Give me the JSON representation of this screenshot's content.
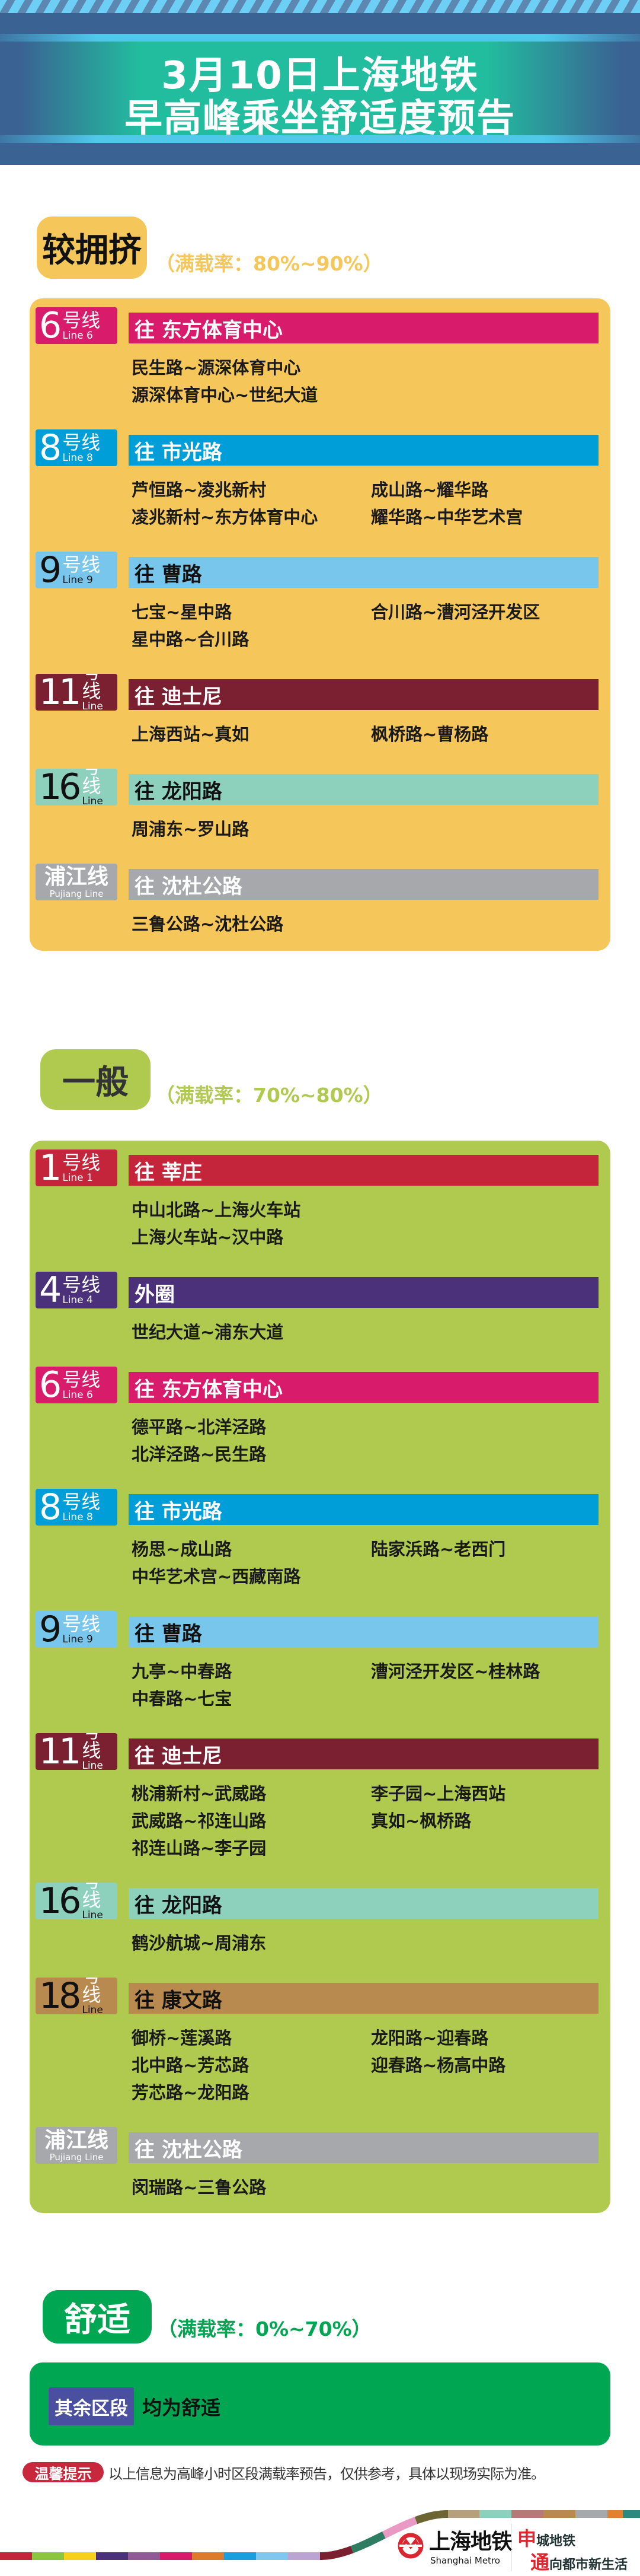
{
  "header": {
    "title_line1": "3月10日上海地铁",
    "title_line2": "早高峰乘坐舒适度预告"
  },
  "sections": [
    {
      "level": "较拥挤",
      "range": "（满载率：80%~90%）",
      "card_color": "#f5c75a",
      "badge_color": "#f5c75a",
      "badge_text_color": "#111111",
      "range_color": "#f5c75a",
      "lines": [
        {
          "number": "6",
          "suffix": "号线",
          "en": "Line 6",
          "color": "#d81b6b",
          "text_color": "#ffffff",
          "direction": "往 东方体育中心",
          "stations": [
            [
              "民生路~源深体育中心",
              ""
            ],
            [
              "源深体育中心~世纪大道",
              ""
            ]
          ]
        },
        {
          "number": "8",
          "suffix": "号线",
          "en": "Line 8",
          "color": "#009ed8",
          "text_color": "#ffffff",
          "direction": "往 市光路",
          "stations": [
            [
              "芦恒路~凌兆新村",
              "成山路~耀华路"
            ],
            [
              "凌兆新村~东方体育中心",
              "耀华路~中华艺术宫"
            ]
          ]
        },
        {
          "number": "9",
          "suffix": "号线",
          "en": "Line 9",
          "color": "#79c6ec",
          "text_color": "#111111",
          "direction": "往 曹路",
          "stations": [
            [
              "七宝~星中路",
              "合川路~漕河泾开发区"
            ],
            [
              "星中路~合川路",
              ""
            ]
          ]
        },
        {
          "number": "11",
          "suffix": "号线",
          "en": "Line 11",
          "color": "#7a2030",
          "text_color": "#ffffff",
          "direction": "往 迪士尼",
          "stations": [
            [
              "上海西站~真如",
              "枫桥路~曹杨路"
            ]
          ]
        },
        {
          "number": "16",
          "suffix": "号线",
          "en": "Line 16",
          "color": "#8dd1bd",
          "text_color": "#111111",
          "direction": "往 龙阳路",
          "stations": [
            [
              "周浦东~罗山路",
              ""
            ]
          ]
        },
        {
          "number": "",
          "suffix": "浦江线",
          "en": "Pujiang Line",
          "color": "#a7a8ab",
          "text_color": "#ffffff",
          "direction": "往 沈杜公路",
          "stations": [
            [
              "三鲁公路~沈杜公路",
              ""
            ]
          ]
        }
      ]
    },
    {
      "level": "一般",
      "range": "（满载率：70%~80%）",
      "card_color": "#b0ca4f",
      "badge_color": "#b0ca4f",
      "badge_text_color": "#333333",
      "range_color": "#b0ca4f",
      "lines": [
        {
          "number": "1",
          "suffix": "号线",
          "en": "Line 1",
          "color": "#c4253a",
          "text_color": "#ffffff",
          "direction": "往 莘庄",
          "stations": [
            [
              "中山北路~上海火车站",
              ""
            ],
            [
              "上海火车站~汉中路",
              ""
            ]
          ]
        },
        {
          "number": "4",
          "suffix": "号线",
          "en": "Line 4",
          "color": "#4b3179",
          "text_color": "#ffffff",
          "direction": "外圈",
          "stations": [
            [
              "世纪大道~浦东大道",
              ""
            ]
          ]
        },
        {
          "number": "6",
          "suffix": "号线",
          "en": "Line 6",
          "color": "#d81b6b",
          "text_color": "#ffffff",
          "direction": "往 东方体育中心",
          "stations": [
            [
              "德平路~北洋泾路",
              ""
            ],
            [
              "北洋泾路~民生路",
              ""
            ]
          ]
        },
        {
          "number": "8",
          "suffix": "号线",
          "en": "Line 8",
          "color": "#009ed8",
          "text_color": "#ffffff",
          "direction": "往 市光路",
          "stations": [
            [
              "杨思~成山路",
              "陆家浜路~老西门"
            ],
            [
              "中华艺术宫~西藏南路",
              ""
            ]
          ]
        },
        {
          "number": "9",
          "suffix": "号线",
          "en": "Line 9",
          "color": "#79c6ec",
          "text_color": "#111111",
          "direction": "往 曹路",
          "stations": [
            [
              "九亭~中春路",
              "漕河泾开发区~桂林路"
            ],
            [
              "中春路~七宝",
              ""
            ]
          ]
        },
        {
          "number": "11",
          "suffix": "号线",
          "en": "Line 11",
          "color": "#7a2030",
          "text_color": "#ffffff",
          "direction": "往 迪士尼",
          "stations": [
            [
              "桃浦新村~武威路",
              "李子园~上海西站"
            ],
            [
              "武威路~祁连山路",
              "真如~枫桥路"
            ],
            [
              "祁连山路~李子园",
              ""
            ]
          ]
        },
        {
          "number": "16",
          "suffix": "号线",
          "en": "Line 16",
          "color": "#8dd1bd",
          "text_color": "#111111",
          "direction": "往 龙阳路",
          "stations": [
            [
              "鹤沙航城~周浦东",
              ""
            ]
          ]
        },
        {
          "number": "18",
          "suffix": "号线",
          "en": "Line 18",
          "color": "#b98a50",
          "text_color": "#111111",
          "direction": "往 康文路",
          "stations": [
            [
              "御桥~莲溪路",
              "龙阳路~迎春路"
            ],
            [
              "北中路~芳芯路",
              "迎春路~杨高中路"
            ],
            [
              "芳芯路~龙阳路",
              ""
            ]
          ]
        },
        {
          "number": "",
          "suffix": "浦江线",
          "en": "Pujiang Line",
          "color": "#a7a8ab",
          "text_color": "#ffffff",
          "direction": "往 沈杜公路",
          "stations": [
            [
              "闵瑞路~三鲁公路",
              ""
            ]
          ]
        }
      ]
    }
  ],
  "comfort": {
    "level": "舒适",
    "range": "（满载率：0%~70%）",
    "card_color": "#00a651",
    "badge_text_color": "#ffffff",
    "other_label": "其余区段",
    "other_text": "均为舒适"
  },
  "tip": {
    "label": "温馨提示",
    "text": "以上信息为高峰小时区段满载率预告，仅供参考，具体以现场实际为准。"
  },
  "footer": {
    "logo_zh": "上海地铁",
    "logo_en": "Shanghai Metro",
    "slogan_line1_big": "申",
    "slogan_line1_rest": "城地铁",
    "slogan_line2_big": "通",
    "slogan_line2_rest": "向都市新生活",
    "stripe_colors_bottom": [
      "#c4253a",
      "#8cc63f",
      "#f7d117",
      "#4b3179",
      "#8f5a96",
      "#d81b6b",
      "#e07a2b",
      "#1a9ee0",
      "#7fc7ec",
      "#bba4d1"
    ],
    "stripe_colors_curve": [
      "#7a2030",
      "#2e7d63",
      "#e89ac5",
      "#6b6533"
    ],
    "stripe_colors_top": [
      "#b59f7c",
      "#8dd1bd",
      "#b47a78",
      "#b98a50",
      "#a7a8ab",
      "#e08230",
      "#2a8a80"
    ]
  }
}
